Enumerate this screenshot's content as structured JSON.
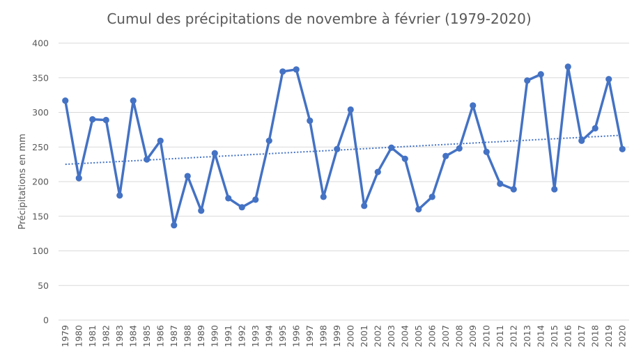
{
  "chart_data": {
    "type": "line",
    "title": "Cumul des précipitations de novembre à février (1979-2020)",
    "xlabel": "",
    "ylabel": "Précipitations en mm",
    "ylim": [
      0,
      400
    ],
    "yticks": [
      0,
      50,
      100,
      150,
      200,
      250,
      300,
      350,
      400
    ],
    "grid": true,
    "categories": [
      "1979",
      "1980",
      "1981",
      "1982",
      "1983",
      "1984",
      "1985",
      "1986",
      "1987",
      "1988",
      "1989",
      "1990",
      "1991",
      "1992",
      "1993",
      "1994",
      "1995",
      "1996",
      "1997",
      "1998",
      "1999",
      "2000",
      "2001",
      "2002",
      "2003",
      "2004",
      "2005",
      "2006",
      "2007",
      "2008",
      "2009",
      "2010",
      "2011",
      "2012",
      "2013",
      "2014",
      "2015",
      "2016",
      "2017",
      "2018",
      "2019",
      "2020"
    ],
    "series": [
      {
        "values": [
          317,
          205,
          290,
          289,
          180,
          317,
          232,
          259,
          137,
          208,
          158,
          241,
          176,
          163,
          174,
          259,
          359,
          362,
          288,
          178,
          247,
          304,
          165,
          214,
          249,
          233,
          160,
          178,
          237,
          248,
          310,
          243,
          197,
          189,
          346,
          355,
          189,
          366,
          259,
          277,
          348,
          247
        ],
        "color": "#4472c4"
      }
    ],
    "trendline": {
      "style": "dotted",
      "color": "#4472c4",
      "start": 225,
      "end": 267
    }
  }
}
